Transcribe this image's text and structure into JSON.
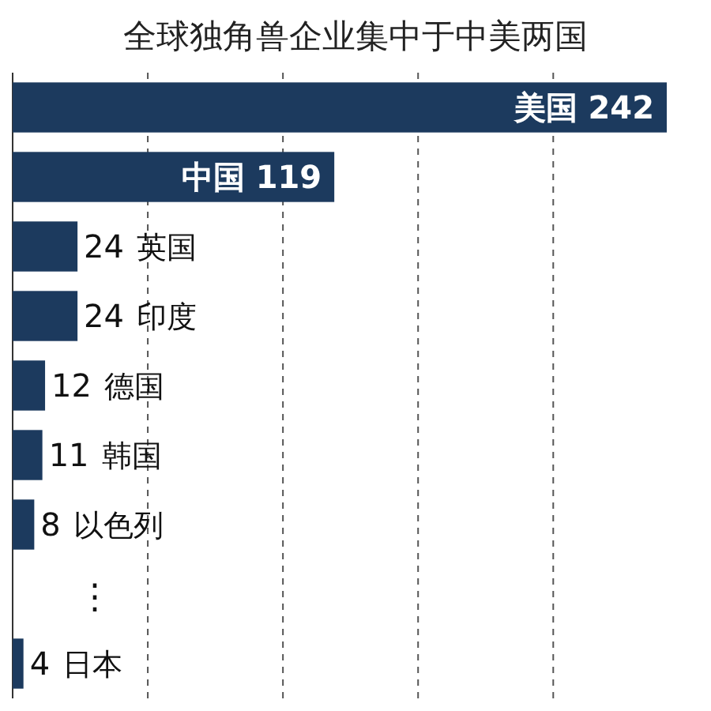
{
  "chart_data": {
    "type": "bar",
    "orientation": "horizontal",
    "title": "全球独角兽企业集中于中美两国",
    "categories": [
      "美国",
      "中国",
      "英国",
      "印度",
      "德国",
      "韩国",
      "以色列",
      "⋮",
      "日本"
    ],
    "values": [
      242,
      119,
      24,
      24,
      12,
      11,
      8,
      null,
      4
    ],
    "color": "#1c3a5e",
    "xticks": [
      {
        "value": 50,
        "label": null
      },
      {
        "value": 100,
        "label": null
      },
      {
        "value": 150,
        "label": null
      },
      {
        "value": 200,
        "label": null
      }
    ],
    "grid": "x",
    "data_labels": true
  }
}
